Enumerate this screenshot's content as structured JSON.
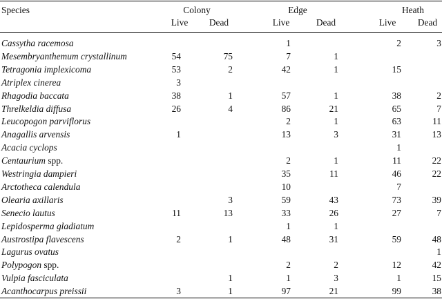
{
  "table": {
    "species_header": "Species",
    "groups": [
      "Colony",
      "Edge",
      "Heath"
    ],
    "subheaders": [
      "Live",
      "Dead",
      "Live",
      "Dead",
      "Live",
      "Dead"
    ],
    "rows": [
      {
        "name": "Cassytha racemosa",
        "suffix": "",
        "values": [
          "",
          "",
          "1",
          "",
          "2",
          "3"
        ]
      },
      {
        "name": "Mesembryanthemum crystallinum",
        "suffix": "",
        "values": [
          "54",
          "75",
          "7",
          "1",
          "",
          ""
        ]
      },
      {
        "name": "Tetragonia implexicoma",
        "suffix": "",
        "values": [
          "53",
          "2",
          "42",
          "1",
          "15",
          ""
        ]
      },
      {
        "name": "Atriplex cinerea",
        "suffix": "",
        "values": [
          "3",
          "",
          "",
          "",
          "",
          ""
        ]
      },
      {
        "name": "Rhagodia baccata",
        "suffix": "",
        "values": [
          "38",
          "1",
          "57",
          "1",
          "38",
          "2"
        ]
      },
      {
        "name": "Threlkeldia diffusa",
        "suffix": "",
        "values": [
          "26",
          "4",
          "86",
          "21",
          "65",
          "7"
        ]
      },
      {
        "name": "Leucopogon parviflorus",
        "suffix": "",
        "values": [
          "",
          "",
          "2",
          "1",
          "63",
          "11"
        ]
      },
      {
        "name": "Anagallis arvensis",
        "suffix": "",
        "values": [
          "1",
          "",
          "13",
          "3",
          "31",
          "13"
        ]
      },
      {
        "name": "Acacia cyclops",
        "suffix": "",
        "values": [
          "",
          "",
          "",
          "",
          "1",
          ""
        ]
      },
      {
        "name": "Centaurium",
        "suffix": " spp.",
        "values": [
          "",
          "",
          "2",
          "1",
          "11",
          "22"
        ]
      },
      {
        "name": "Westringia dampieri",
        "suffix": "",
        "values": [
          "",
          "",
          "35",
          "11",
          "46",
          "22"
        ]
      },
      {
        "name": "Arctotheca calendula",
        "suffix": "",
        "values": [
          "",
          "",
          "10",
          "",
          "7",
          ""
        ]
      },
      {
        "name": "Olearia axillaris",
        "suffix": "",
        "values": [
          "",
          "3",
          "59",
          "43",
          "73",
          "39"
        ]
      },
      {
        "name": "Senecio lautus",
        "suffix": "",
        "values": [
          "11",
          "13",
          "33",
          "26",
          "27",
          "7"
        ]
      },
      {
        "name": "Lepidosperma gladiatum",
        "suffix": "",
        "values": [
          "",
          "",
          "1",
          "1",
          "",
          ""
        ]
      },
      {
        "name": "Austrostipa flavescens",
        "suffix": "",
        "values": [
          "2",
          "1",
          "48",
          "31",
          "59",
          "48"
        ]
      },
      {
        "name": "Lagurus ovatus",
        "suffix": "",
        "values": [
          "",
          "",
          "",
          "",
          "",
          "1"
        ]
      },
      {
        "name": "Polypogon",
        "suffix": " spp.",
        "values": [
          "",
          "",
          "2",
          "2",
          "12",
          "42"
        ]
      },
      {
        "name": "Vulpia fasciculata",
        "suffix": "",
        "values": [
          "",
          "1",
          "1",
          "3",
          "1",
          "15"
        ]
      },
      {
        "name": "Acanthocarpus preissii",
        "suffix": "",
        "values": [
          "3",
          "1",
          "97",
          "21",
          "99",
          "38"
        ]
      }
    ]
  }
}
